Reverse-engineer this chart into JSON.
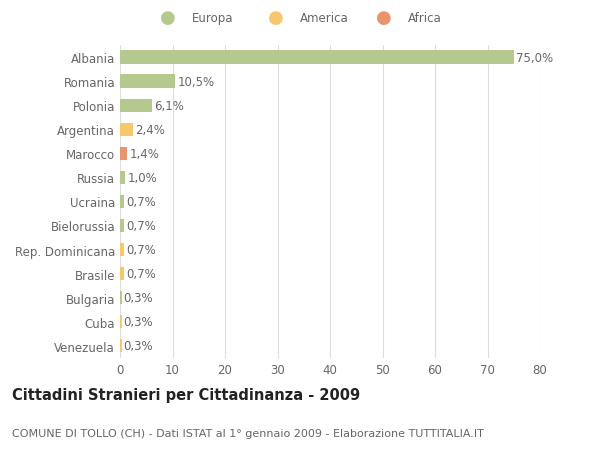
{
  "categories": [
    "Albania",
    "Romania",
    "Polonia",
    "Argentina",
    "Marocco",
    "Russia",
    "Ucraina",
    "Bielorussia",
    "Rep. Dominicana",
    "Brasile",
    "Bulgaria",
    "Cuba",
    "Venezuela"
  ],
  "values": [
    75.0,
    10.5,
    6.1,
    2.4,
    1.4,
    1.0,
    0.7,
    0.7,
    0.7,
    0.7,
    0.3,
    0.3,
    0.3
  ],
  "labels": [
    "75,0%",
    "10,5%",
    "6,1%",
    "2,4%",
    "1,4%",
    "1,0%",
    "0,7%",
    "0,7%",
    "0,7%",
    "0,7%",
    "0,3%",
    "0,3%",
    "0,3%"
  ],
  "colors": [
    "#b5c98e",
    "#b5c98e",
    "#b5c98e",
    "#f5c86e",
    "#e8956d",
    "#b5c98e",
    "#b5c98e",
    "#b5c98e",
    "#f5c86e",
    "#f5c86e",
    "#b5c98e",
    "#f5c86e",
    "#f5c86e"
  ],
  "legend_labels": [
    "Europa",
    "America",
    "Africa"
  ],
  "legend_colors": [
    "#b5c98e",
    "#f5c86e",
    "#e8956d"
  ],
  "title": "Cittadini Stranieri per Cittadinanza - 2009",
  "subtitle": "COMUNE DI TOLLO (CH) - Dati ISTAT al 1° gennaio 2009 - Elaborazione TUTTITALIA.IT",
  "xlim": [
    0,
    80
  ],
  "xticks": [
    0,
    10,
    20,
    30,
    40,
    50,
    60,
    70,
    80
  ],
  "background_color": "#ffffff",
  "grid_color": "#dddddd",
  "bar_height": 0.55,
  "label_fontsize": 8.5,
  "tick_fontsize": 8.5,
  "title_fontsize": 10.5,
  "subtitle_fontsize": 8
}
